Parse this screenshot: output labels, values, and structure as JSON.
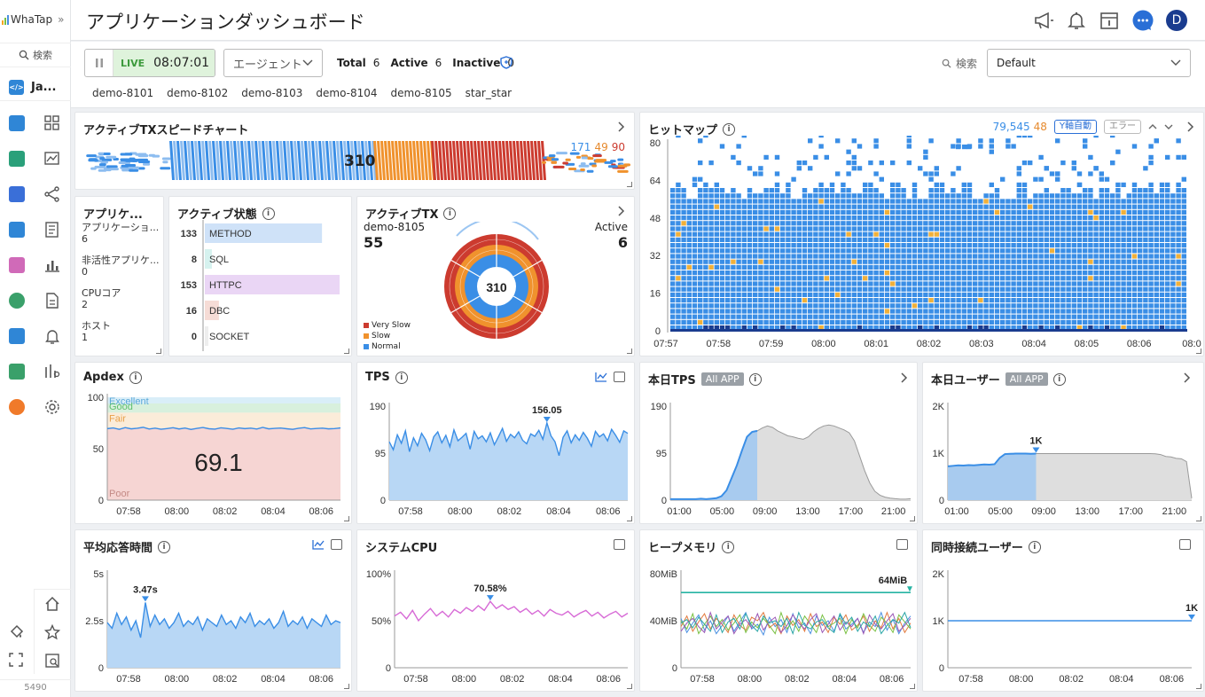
{
  "app": {
    "logo": "WhaTap",
    "collapse": "»",
    "nav_search": "検索",
    "project_short": "Ja...",
    "footer_code": "5490"
  },
  "nav_icons_col1": [
    "code-icon",
    "server-icon",
    "kubernetes-icon",
    "database-icon",
    "log-icon",
    "globe-icon",
    "cloud-icon",
    "browser-icon",
    "signal-icon"
  ],
  "nav_icons_col2": [
    "dashboard-icon",
    "chart-icon",
    "flow-icon",
    "log-file-icon",
    "bar-chart-icon",
    "document-icon",
    "bell-icon",
    "analysis-icon",
    "settings-icon"
  ],
  "nav_bottom": [
    "paint-icon",
    "expand-icon",
    "home-icon",
    "star-icon",
    "search-board-icon"
  ],
  "header": {
    "title": "アプリケーションダッシュボード",
    "avatar": "D"
  },
  "toolbar": {
    "live": "LIVE",
    "time": "08:07:01",
    "agent_select": "エージェント",
    "total_label": "Total",
    "total": "6",
    "active_label": "Active",
    "active": "6",
    "inactive_label": "Inactive",
    "inactive": "0",
    "search_label": "検索",
    "preset": "Default",
    "agents": [
      "demo-8101",
      "demo-8102",
      "demo-8103",
      "demo-8104",
      "demo-8105",
      "star_star"
    ]
  },
  "speed": {
    "title": "アクティブTXスピードチャート",
    "center": "310",
    "c_normal": "171",
    "c_slow": "49",
    "c_vslow": "90"
  },
  "heatmap": {
    "title": "ヒットマップ",
    "count_normal": "79,545",
    "count_slow": "48",
    "yaxis_button": "Y軸自動",
    "error_button": "エラー",
    "chart_data": {
      "type": "heatmap",
      "y_ticks": [
        "80",
        "64",
        "48",
        "32",
        "16",
        "0"
      ],
      "x_ticks": [
        "07:57",
        "07:58",
        "07:59",
        "08:00",
        "08:01",
        "08:02",
        "08:03",
        "08:04",
        "08:05",
        "08:06",
        "08:0"
      ],
      "ylim": [
        0,
        80
      ]
    }
  },
  "appinfo": {
    "title": "アプリケ...",
    "items": [
      {
        "label": "アプリケーショ...",
        "value": "6"
      },
      {
        "label": "非活性アプリケ...",
        "value": "0"
      },
      {
        "label": "CPUコア",
        "value": "2"
      },
      {
        "label": "ホスト",
        "value": "1"
      }
    ]
  },
  "active_status": {
    "title": "アクティブ状態",
    "chart_data": {
      "type": "bar",
      "categories": [
        "METHOD",
        "SQL",
        "HTTPC",
        "DBC",
        "SOCKET"
      ],
      "values": [
        133,
        8,
        153,
        16,
        0
      ],
      "colors": [
        "#cfe2f8",
        "#d6f2ef",
        "#ead6f5",
        "#f6dcd6",
        "#eeeeee"
      ]
    }
  },
  "active_tx": {
    "title": "アクティブTX",
    "agent": "demo-8105",
    "agent_value": "55",
    "active_label": "Active",
    "active_value": "6",
    "center": "310",
    "legend": [
      {
        "name": "Very Slow",
        "color": "#cc3b2f"
      },
      {
        "name": "Slow",
        "color": "#f0922d"
      },
      {
        "name": "Normal",
        "color": "#3a8ee6"
      }
    ]
  },
  "apdex": {
    "title": "Apdex",
    "value": "69.1",
    "bands": [
      "Excellent",
      "Good",
      "Fair",
      "Poor"
    ],
    "chart_data": {
      "type": "line",
      "ylim": [
        0,
        100
      ],
      "y_ticks": [
        "100",
        "50",
        "0"
      ],
      "x_ticks": [
        "07:58",
        "08:00",
        "08:02",
        "08:04",
        "08:06"
      ],
      "values": [
        69.5,
        70.2,
        68.8,
        70.5,
        69.3,
        69.9,
        70.8,
        69.1,
        70.0,
        68.9,
        69.6,
        70.4,
        69.2,
        70.1,
        68.7,
        69.8,
        70.6,
        69.4,
        69.0,
        70.3,
        69.7,
        68.9,
        70.2,
        69.5,
        70.0,
        69.1,
        70.7,
        69.3,
        69.8,
        70.1,
        69.4,
        68.8,
        69.9,
        70.5,
        69.2,
        69.7,
        70.0,
        69.3,
        69.6,
        70.2
      ]
    }
  },
  "tps": {
    "title": "TPS",
    "peak_label": "156.05",
    "chart_data": {
      "type": "area",
      "ylim": [
        0,
        190
      ],
      "y_ticks": [
        "190",
        "95",
        "0"
      ],
      "x_ticks": [
        "07:58",
        "08:00",
        "08:02",
        "08:04",
        "08:06"
      ],
      "values": [
        118,
        102,
        132,
        115,
        140,
        98,
        126,
        110,
        135,
        122,
        100,
        128,
        138,
        116,
        131,
        108,
        142,
        120,
        127,
        135,
        103,
        139,
        124,
        130,
        118,
        136,
        112,
        128,
        145,
        119,
        133,
        126,
        138,
        121,
        114,
        134,
        129,
        141,
        123,
        156,
        130,
        118,
        90,
        127,
        140,
        116,
        132,
        121,
        137,
        125,
        109,
        139,
        128,
        134,
        120,
        143,
        131,
        117,
        140,
        135
      ]
    }
  },
  "today_tps": {
    "title": "本日TPS",
    "tag": "All APP",
    "chart_data": {
      "type": "area",
      "ylim": [
        0,
        190
      ],
      "y_ticks": [
        "190",
        "95",
        "0"
      ],
      "x_ticks": [
        "01:00",
        "05:00",
        "09:00",
        "13:00",
        "17:00",
        "21:00"
      ],
      "today_values": [
        2,
        2,
        2,
        2,
        2,
        2,
        3,
        2,
        3,
        4,
        8,
        20,
        45,
        70,
        100,
        128,
        138,
        140
      ],
      "yesterday_values": [
        2,
        2,
        2,
        2,
        2,
        2,
        3,
        2,
        3,
        4,
        8,
        20,
        45,
        70,
        100,
        128,
        138,
        140,
        146,
        150,
        147,
        140,
        135,
        130,
        128,
        125,
        123,
        128,
        138,
        145,
        150,
        152,
        150,
        146,
        142,
        136,
        120,
        90,
        60,
        35,
        18,
        10,
        6,
        4,
        3,
        2,
        2,
        3
      ]
    }
  },
  "today_users": {
    "title": "本日ユーザー",
    "tag": "All APP",
    "peak_label": "1K",
    "chart_data": {
      "type": "area",
      "ylim": [
        0,
        2000
      ],
      "y_ticks": [
        "2K",
        "1K",
        "0"
      ],
      "x_ticks": [
        "01:00",
        "05:00",
        "09:00",
        "13:00",
        "17:00",
        "21:00"
      ],
      "today_values": [
        720,
        730,
        740,
        735,
        745,
        740,
        750,
        760,
        755,
        765,
        900,
        980,
        985,
        990,
        990,
        990,
        985,
        990
      ],
      "yesterday_values": [
        720,
        730,
        740,
        735,
        745,
        740,
        750,
        760,
        755,
        765,
        900,
        980,
        985,
        990,
        990,
        990,
        985,
        990,
        990,
        990,
        990,
        990,
        990,
        990,
        990,
        990,
        990,
        990,
        990,
        990,
        990,
        990,
        990,
        990,
        990,
        990,
        990,
        990,
        990,
        990,
        985,
        970,
        930,
        920,
        890,
        880,
        820,
        40
      ]
    }
  },
  "resp_time": {
    "title": "平均応答時間",
    "peak_label": "3.47s",
    "chart_data": {
      "type": "area",
      "ylim": [
        0,
        5
      ],
      "y_ticks": [
        "5s",
        "2.5s",
        "0"
      ],
      "x_ticks": [
        "07:58",
        "08:00",
        "08:02",
        "08:04",
        "08:06"
      ],
      "values": [
        2.4,
        2.1,
        2.9,
        2.3,
        2.7,
        2.0,
        2.5,
        1.6,
        3.47,
        2.2,
        2.8,
        2.3,
        2.6,
        2.1,
        2.4,
        2.9,
        2.2,
        2.5,
        2.3,
        2.7,
        2.0,
        2.6,
        2.4,
        2.2,
        2.8,
        2.3,
        2.5,
        2.1,
        2.7,
        2.4,
        2.9,
        2.2,
        2.5,
        2.3,
        2.6,
        2.1,
        2.4,
        3.0,
        2.2,
        2.5,
        2.3,
        2.7,
        2.1,
        2.6,
        2.4,
        2.2,
        2.8,
        2.3,
        2.5,
        2.4
      ]
    }
  },
  "system_cpu": {
    "title": "システムCPU",
    "peak_label": "70.58%",
    "chart_data": {
      "type": "line",
      "ylim": [
        0,
        100
      ],
      "y_ticks": [
        "100%",
        "50%",
        "0"
      ],
      "x_ticks": [
        "07:58",
        "08:00",
        "08:02",
        "08:04",
        "08:06"
      ],
      "values": [
        55,
        59,
        52,
        61,
        50,
        57,
        63,
        55,
        60,
        54,
        62,
        58,
        64,
        60,
        66,
        61,
        70.58,
        63,
        67,
        62,
        65,
        59,
        63,
        57,
        61,
        55,
        62,
        58,
        56,
        60,
        54,
        58,
        61,
        55,
        59,
        53,
        57,
        60,
        54,
        58
      ]
    }
  },
  "heap": {
    "title": "ヒープメモリ",
    "max_label": "64MiB",
    "chart_data": {
      "type": "line",
      "ylim": [
        0,
        80
      ],
      "y_ticks": [
        "80MiB",
        "40MiB",
        "0"
      ],
      "x_ticks": [
        "07:58",
        "08:00",
        "08:02",
        "08:04",
        "08:06"
      ],
      "max_value": 64,
      "series_colors": [
        "#4a90e2",
        "#e27a3f",
        "#7ac143",
        "#9b59b6",
        "#2aa6a6"
      ],
      "series": [
        {
          "values": [
            42,
            30,
            38,
            45,
            32,
            40,
            29,
            36,
            44,
            31,
            39,
            47,
            33,
            37,
            28,
            43,
            35,
            41,
            30,
            46,
            34,
            38,
            29,
            44,
            36,
            40,
            31,
            45,
            33,
            37,
            42,
            30,
            39,
            35,
            47,
            32,
            41,
            29,
            38,
            44
          ]
        },
        {
          "values": [
            35,
            44,
            31,
            39,
            46,
            33,
            42,
            37,
            30,
            45,
            36,
            32,
            43,
            40,
            47,
            34,
            38,
            29,
            44,
            36,
            41,
            31,
            46,
            35,
            39,
            30,
            43,
            37,
            45,
            32,
            36,
            44,
            31,
            40,
            34,
            47,
            33,
            42,
            30,
            38
          ]
        },
        {
          "values": [
            40,
            33,
            46,
            29,
            37,
            44,
            35,
            41,
            32,
            38,
            45,
            30,
            39,
            34,
            42,
            36,
            29,
            47,
            33,
            40,
            31,
            44,
            37,
            30,
            45,
            35,
            38,
            42,
            29,
            41,
            34,
            46,
            36,
            31,
            43,
            38,
            30,
            45,
            39,
            33
          ]
        },
        {
          "values": [
            31,
            38,
            42,
            35,
            30,
            47,
            33,
            39,
            44,
            29,
            37,
            41,
            34,
            46,
            32,
            39,
            43,
            30,
            36,
            45,
            38,
            33,
            41,
            46,
            30,
            37,
            44,
            32,
            39,
            35,
            42,
            29,
            45,
            37,
            33,
            40,
            46,
            31,
            36,
            42
          ]
        },
        {
          "values": [
            38,
            41,
            34,
            43,
            37,
            31,
            45,
            30,
            39,
            42,
            33,
            46,
            36,
            31,
            44,
            38,
            40,
            35,
            42,
            29,
            47,
            36,
            33,
            39,
            41,
            34,
            30,
            46,
            37,
            43,
            31,
            39,
            35,
            44,
            29,
            36,
            41,
            38,
            47,
            34
          ]
        }
      ]
    }
  },
  "concurrent": {
    "title": "同時接続ユーザー",
    "peak_label": "1K",
    "chart_data": {
      "type": "line",
      "ylim": [
        0,
        2000
      ],
      "y_ticks": [
        "2K",
        "1K",
        "0"
      ],
      "x_ticks": [
        "07:58",
        "08:00",
        "08:02",
        "08:04",
        "08:06"
      ],
      "values": [
        1000,
        1000,
        1000,
        1000,
        1000,
        1000,
        1000,
        1000,
        1000,
        1000
      ]
    }
  }
}
